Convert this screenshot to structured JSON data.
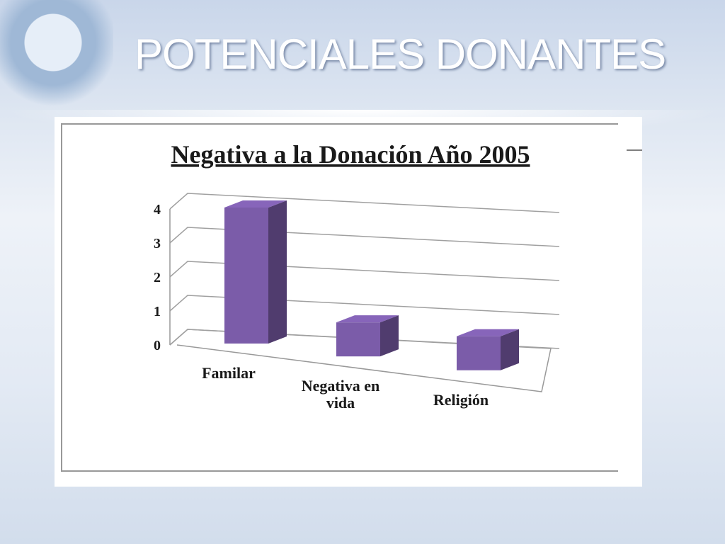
{
  "slide_title": "POTENCIALES DONANTES",
  "chart_data": {
    "type": "bar3d",
    "title": "Negativa a la Donación Año 2005",
    "categories": [
      "Familar",
      "Negativa en vida",
      "Religión"
    ],
    "values": [
      4,
      1,
      1
    ],
    "color": "#7b5ca9",
    "ylim": [
      0,
      4
    ],
    "yticks": [
      0,
      1,
      2,
      3,
      4
    ],
    "grid": true
  }
}
